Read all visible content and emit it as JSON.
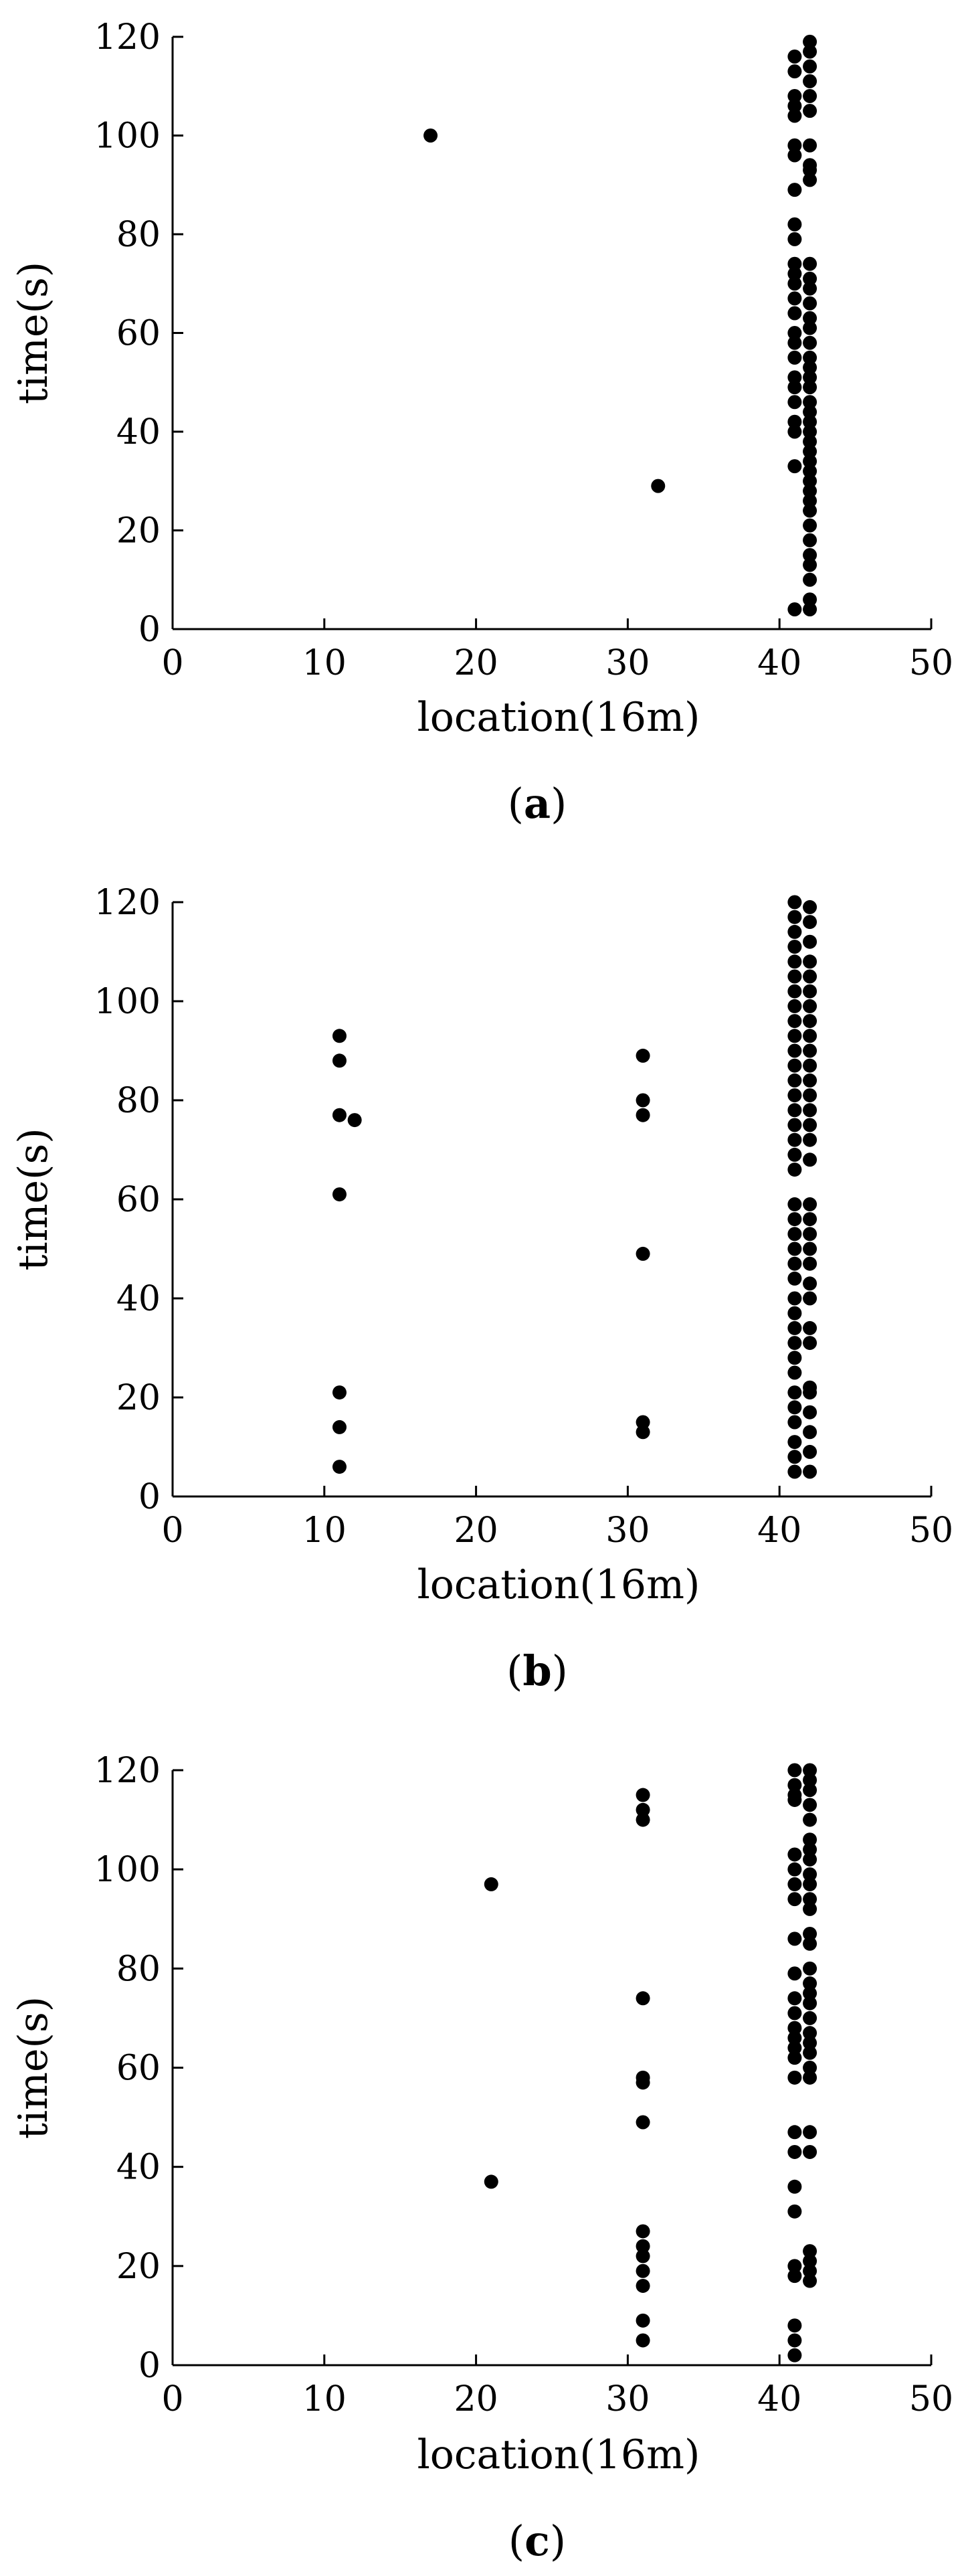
{
  "chart_data": [
    {
      "type": "scatter",
      "panel_label": "(a)",
      "panel_letter": "a",
      "xlabel": "location(16m)",
      "ylabel": "time(s)",
      "xlim": [
        0,
        50
      ],
      "ylim": [
        0,
        120
      ],
      "xticks": [
        0,
        10,
        20,
        30,
        40,
        50
      ],
      "yticks": [
        0,
        20,
        40,
        60,
        80,
        100,
        120
      ],
      "grid": false,
      "marker_color": "#000000",
      "series": [
        {
          "points": [
            [
              17,
              100
            ],
            [
              32,
              29
            ],
            [
              41,
              116
            ],
            [
              41,
              113
            ],
            [
              41,
              108
            ],
            [
              41,
              106
            ],
            [
              41,
              104
            ],
            [
              41,
              98
            ],
            [
              41,
              96
            ],
            [
              41,
              89
            ],
            [
              41,
              82
            ],
            [
              41,
              79
            ],
            [
              41,
              74
            ],
            [
              41,
              72
            ],
            [
              41,
              70
            ],
            [
              41,
              67
            ],
            [
              41,
              64
            ],
            [
              41,
              60
            ],
            [
              41,
              58
            ],
            [
              41,
              55
            ],
            [
              41,
              51
            ],
            [
              41,
              49
            ],
            [
              41,
              46
            ],
            [
              41,
              42
            ],
            [
              41,
              40
            ],
            [
              41,
              33
            ],
            [
              41,
              4
            ],
            [
              42,
              119
            ],
            [
              42,
              117
            ],
            [
              42,
              114
            ],
            [
              42,
              111
            ],
            [
              42,
              108
            ],
            [
              42,
              105
            ],
            [
              42,
              98
            ],
            [
              42,
              94
            ],
            [
              42,
              93
            ],
            [
              42,
              91
            ],
            [
              42,
              74
            ],
            [
              42,
              71
            ],
            [
              42,
              69
            ],
            [
              42,
              66
            ],
            [
              42,
              63
            ],
            [
              42,
              61
            ],
            [
              42,
              58
            ],
            [
              42,
              55
            ],
            [
              42,
              53
            ],
            [
              42,
              51
            ],
            [
              42,
              49
            ],
            [
              42,
              46
            ],
            [
              42,
              44
            ],
            [
              42,
              42
            ],
            [
              42,
              40
            ],
            [
              42,
              38
            ],
            [
              42,
              36
            ],
            [
              42,
              34
            ],
            [
              42,
              32
            ],
            [
              42,
              30
            ],
            [
              42,
              28
            ],
            [
              42,
              26
            ],
            [
              42,
              24
            ],
            [
              42,
              21
            ],
            [
              42,
              18
            ],
            [
              42,
              15
            ],
            [
              42,
              13
            ],
            [
              42,
              10
            ],
            [
              42,
              6
            ],
            [
              42,
              4
            ]
          ]
        }
      ]
    },
    {
      "type": "scatter",
      "panel_label": "(b)",
      "panel_letter": "b",
      "xlabel": "location(16m)",
      "ylabel": "time(s)",
      "xlim": [
        0,
        50
      ],
      "ylim": [
        0,
        120
      ],
      "xticks": [
        0,
        10,
        20,
        30,
        40,
        50
      ],
      "yticks": [
        0,
        20,
        40,
        60,
        80,
        100,
        120
      ],
      "grid": false,
      "marker_color": "#000000",
      "series": [
        {
          "points": [
            [
              11,
              93
            ],
            [
              11,
              88
            ],
            [
              11,
              77
            ],
            [
              12,
              76
            ],
            [
              11,
              61
            ],
            [
              11,
              21
            ],
            [
              11,
              14
            ],
            [
              11,
              6
            ],
            [
              31,
              89
            ],
            [
              31,
              80
            ],
            [
              31,
              77
            ],
            [
              31,
              49
            ],
            [
              31,
              15
            ],
            [
              31,
              13
            ],
            [
              41,
              120
            ],
            [
              41,
              117
            ],
            [
              41,
              114
            ],
            [
              41,
              111
            ],
            [
              41,
              108
            ],
            [
              41,
              105
            ],
            [
              41,
              102
            ],
            [
              41,
              99
            ],
            [
              41,
              96
            ],
            [
              41,
              93
            ],
            [
              41,
              90
            ],
            [
              41,
              87
            ],
            [
              41,
              84
            ],
            [
              41,
              81
            ],
            [
              41,
              78
            ],
            [
              41,
              75
            ],
            [
              41,
              72
            ],
            [
              41,
              69
            ],
            [
              41,
              66
            ],
            [
              41,
              59
            ],
            [
              41,
              56
            ],
            [
              41,
              53
            ],
            [
              41,
              50
            ],
            [
              41,
              47
            ],
            [
              41,
              44
            ],
            [
              41,
              40
            ],
            [
              41,
              37
            ],
            [
              41,
              34
            ],
            [
              41,
              31
            ],
            [
              41,
              28
            ],
            [
              41,
              25
            ],
            [
              41,
              21
            ],
            [
              41,
              18
            ],
            [
              41,
              15
            ],
            [
              41,
              11
            ],
            [
              41,
              8
            ],
            [
              41,
              5
            ],
            [
              42,
              119
            ],
            [
              42,
              116
            ],
            [
              42,
              112
            ],
            [
              42,
              108
            ],
            [
              42,
              105
            ],
            [
              42,
              102
            ],
            [
              42,
              99
            ],
            [
              42,
              96
            ],
            [
              42,
              93
            ],
            [
              42,
              90
            ],
            [
              42,
              87
            ],
            [
              42,
              84
            ],
            [
              42,
              81
            ],
            [
              42,
              78
            ],
            [
              42,
              75
            ],
            [
              42,
              72
            ],
            [
              42,
              68
            ],
            [
              42,
              59
            ],
            [
              42,
              56
            ],
            [
              42,
              53
            ],
            [
              42,
              50
            ],
            [
              42,
              47
            ],
            [
              42,
              43
            ],
            [
              42,
              40
            ],
            [
              42,
              34
            ],
            [
              42,
              31
            ],
            [
              42,
              22
            ],
            [
              42,
              21
            ],
            [
              42,
              17
            ],
            [
              42,
              13
            ],
            [
              42,
              9
            ],
            [
              42,
              5
            ]
          ]
        }
      ]
    },
    {
      "type": "scatter",
      "panel_label": "(c)",
      "panel_letter": "c",
      "xlabel": "location(16m)",
      "ylabel": "time(s)",
      "xlim": [
        0,
        50
      ],
      "ylim": [
        0,
        120
      ],
      "xticks": [
        0,
        10,
        20,
        30,
        40,
        50
      ],
      "yticks": [
        0,
        20,
        40,
        60,
        80,
        100,
        120
      ],
      "grid": false,
      "marker_color": "#000000",
      "series": [
        {
          "points": [
            [
              21,
              97
            ],
            [
              21,
              37
            ],
            [
              31,
              115
            ],
            [
              31,
              112
            ],
            [
              31,
              110
            ],
            [
              31,
              74
            ],
            [
              31,
              58
            ],
            [
              31,
              57
            ],
            [
              31,
              49
            ],
            [
              31,
              27
            ],
            [
              31,
              24
            ],
            [
              31,
              22
            ],
            [
              31,
              19
            ],
            [
              31,
              16
            ],
            [
              31,
              9
            ],
            [
              31,
              5
            ],
            [
              41,
              120
            ],
            [
              41,
              117
            ],
            [
              41,
              115
            ],
            [
              41,
              114
            ],
            [
              41,
              103
            ],
            [
              41,
              100
            ],
            [
              41,
              97
            ],
            [
              41,
              94
            ],
            [
              41,
              86
            ],
            [
              41,
              79
            ],
            [
              41,
              74
            ],
            [
              41,
              71
            ],
            [
              41,
              68
            ],
            [
              41,
              66
            ],
            [
              41,
              64
            ],
            [
              41,
              62
            ],
            [
              41,
              58
            ],
            [
              41,
              47
            ],
            [
              41,
              43
            ],
            [
              41,
              36
            ],
            [
              41,
              31
            ],
            [
              41,
              20
            ],
            [
              41,
              18
            ],
            [
              41,
              8
            ],
            [
              41,
              5
            ],
            [
              41,
              2
            ],
            [
              42,
              120
            ],
            [
              42,
              118
            ],
            [
              42,
              116
            ],
            [
              42,
              113
            ],
            [
              42,
              110
            ],
            [
              42,
              106
            ],
            [
              42,
              104
            ],
            [
              42,
              102
            ],
            [
              42,
              99
            ],
            [
              42,
              97
            ],
            [
              42,
              94
            ],
            [
              42,
              92
            ],
            [
              42,
              87
            ],
            [
              42,
              85
            ],
            [
              42,
              80
            ],
            [
              42,
              77
            ],
            [
              42,
              75
            ],
            [
              42,
              73
            ],
            [
              42,
              70
            ],
            [
              42,
              67
            ],
            [
              42,
              65
            ],
            [
              42,
              63
            ],
            [
              42,
              60
            ],
            [
              42,
              58
            ],
            [
              42,
              47
            ],
            [
              42,
              43
            ],
            [
              42,
              23
            ],
            [
              42,
              21
            ],
            [
              42,
              19
            ],
            [
              42,
              17
            ]
          ]
        }
      ]
    }
  ]
}
